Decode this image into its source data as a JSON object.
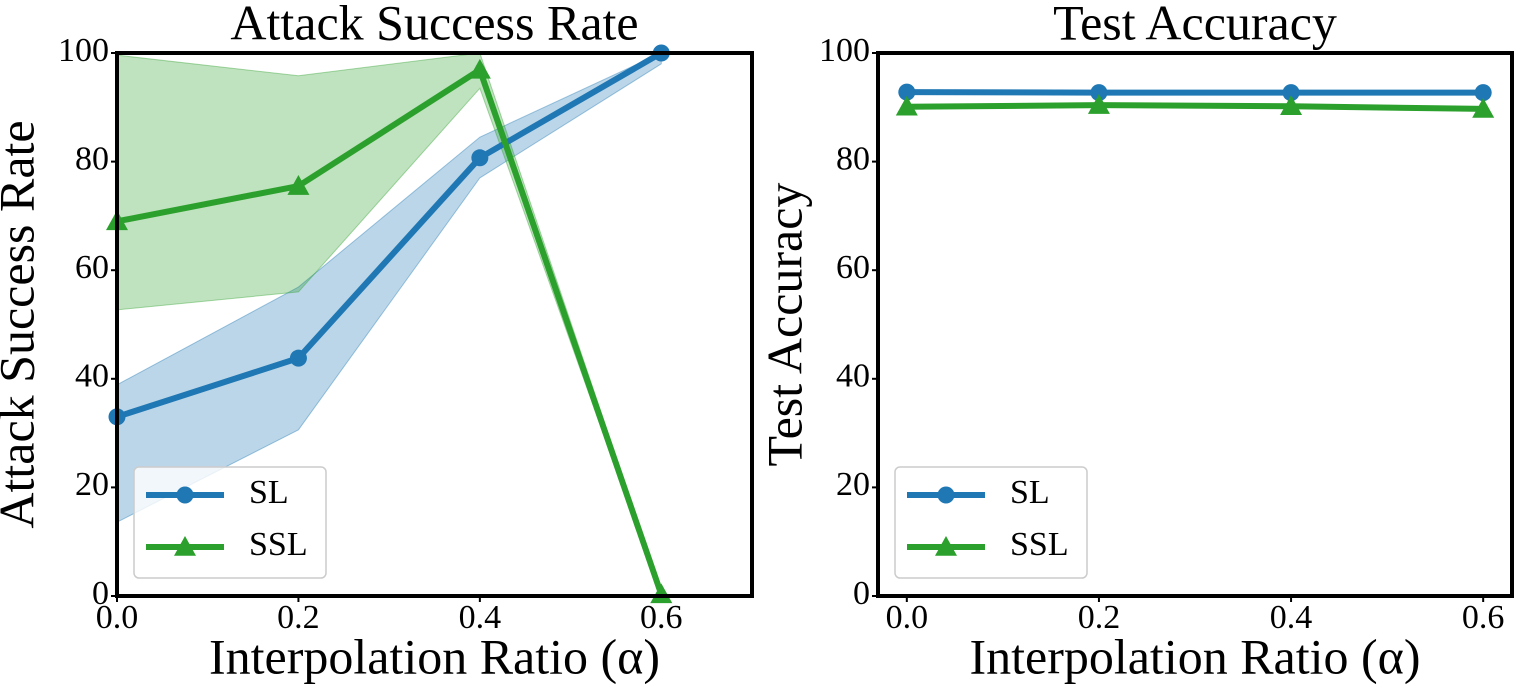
{
  "chart_data": [
    {
      "type": "line",
      "title": "Attack Success Rate",
      "xlabel": "Interpolation Ratio (α)",
      "ylabel": "Attack Success Rate",
      "x": [
        0,
        0.2,
        0.4,
        0.6
      ],
      "series": [
        {
          "name": "SL",
          "color": "#1f77b4",
          "marker": "circle",
          "values": [
            33,
            43.8,
            80.7,
            100
          ],
          "lower": [
            13.6,
            30.6,
            77,
            98
          ],
          "upper": [
            38.9,
            56.9,
            84.5,
            100
          ]
        },
        {
          "name": "SSL",
          "color": "#2ca02c",
          "marker": "triangle",
          "values": [
            69,
            75.5,
            96.9,
            0.3
          ],
          "lower": [
            52.7,
            56,
            93.5,
            0
          ],
          "upper": [
            99.6,
            95.8,
            100,
            1
          ]
        }
      ],
      "xlim": [
        0,
        0.7
      ],
      "ylim": [
        0,
        100
      ],
      "xticks": [
        {
          "value": 0,
          "label": "0.0"
        },
        0.2,
        0.4,
        0.6
      ],
      "yticks": [
        0,
        20,
        40,
        60,
        80,
        100
      ],
      "legend": "lower left",
      "grid": false
    },
    {
      "type": "line",
      "title": "Test Accuracy",
      "xlabel": "Interpolation Ratio (α)",
      "ylabel": "Test Accuracy",
      "x": [
        0,
        0.2,
        0.4,
        0.6
      ],
      "series": [
        {
          "name": "SL",
          "color": "#1f77b4",
          "marker": "circle",
          "values": [
            92.8,
            92.7,
            92.7,
            92.7
          ]
        },
        {
          "name": "SSL",
          "color": "#2ca02c",
          "marker": "triangle",
          "values": [
            90.1,
            90.4,
            90.2,
            89.7
          ]
        }
      ],
      "xlim": [
        -0.03,
        0.63
      ],
      "ylim": [
        0,
        100
      ],
      "xticks": [
        {
          "value": 0,
          "label": "0.0"
        },
        0.2,
        0.4,
        0.6
      ],
      "yticks": [
        0,
        20,
        40,
        60,
        80,
        100
      ],
      "legend": "lower left",
      "grid": false
    }
  ]
}
